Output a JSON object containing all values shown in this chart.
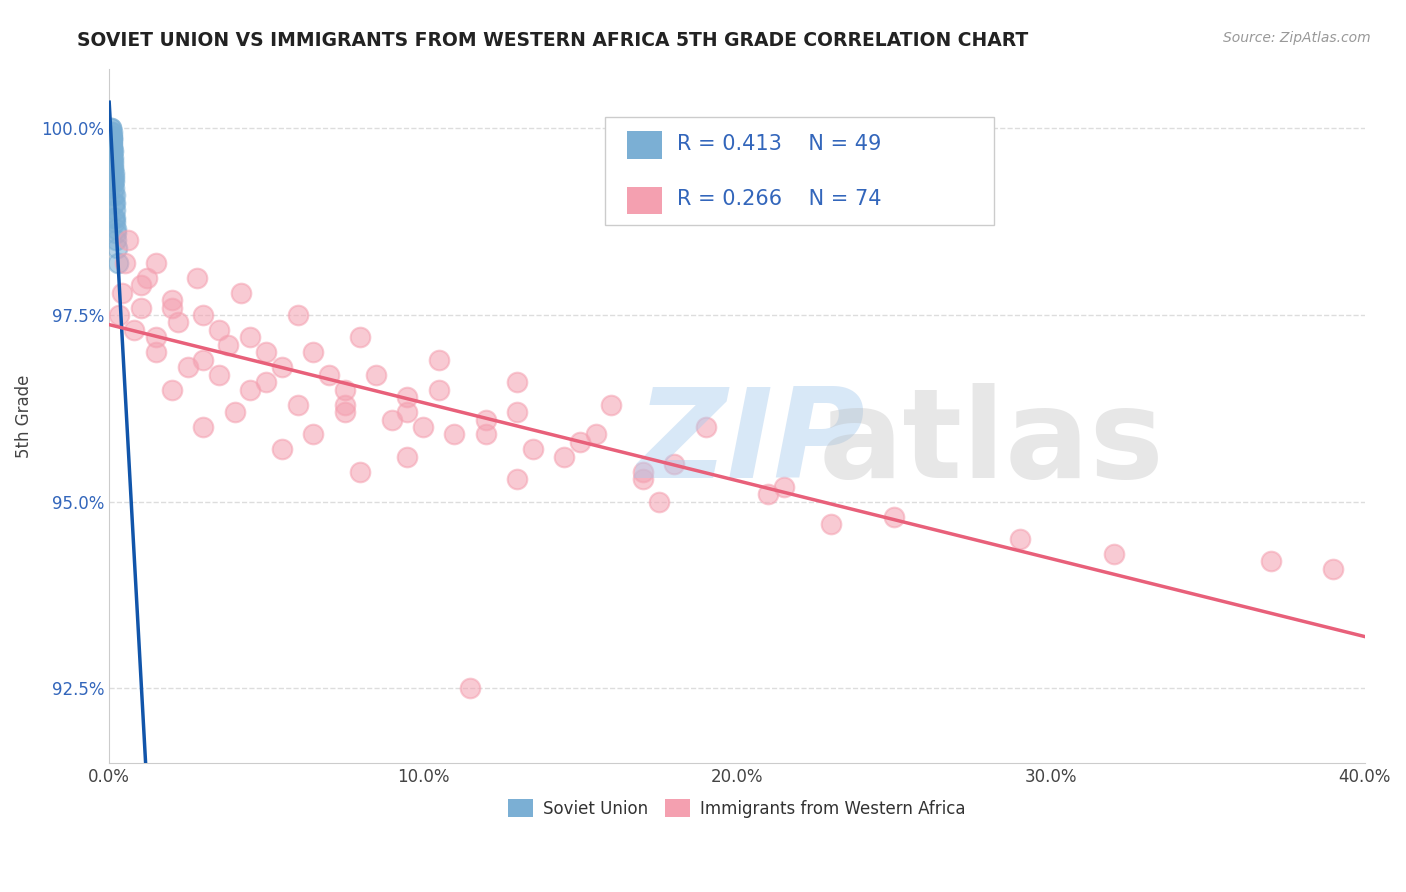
{
  "title": "SOVIET UNION VS IMMIGRANTS FROM WESTERN AFRICA 5TH GRADE CORRELATION CHART",
  "source_text": "Source: ZipAtlas.com",
  "ylabel": "5th Grade",
  "xlim": [
    0.0,
    40.0
  ],
  "ylim": [
    91.5,
    100.8
  ],
  "xticks": [
    0.0,
    10.0,
    20.0,
    30.0,
    40.0
  ],
  "xtick_labels": [
    "0.0%",
    "10.0%",
    "20.0%",
    "30.0%",
    "40.0%"
  ],
  "yticks": [
    92.5,
    95.0,
    97.5,
    100.0
  ],
  "ytick_labels": [
    "92.5%",
    "95.0%",
    "97.5%",
    "100.0%"
  ],
  "legend_R1": "R = 0.413",
  "legend_N1": "N = 49",
  "legend_R2": "R = 0.266",
  "legend_N2": "N = 74",
  "blue_color": "#7BAFD4",
  "pink_color": "#F4A0B0",
  "blue_line_color": "#1155AA",
  "pink_line_color": "#E8607A",
  "watermark_zip_color": "#AACCEE",
  "watermark_atlas_color": "#BBBBBB",
  "blue_x": [
    0.05,
    0.05,
    0.06,
    0.07,
    0.08,
    0.08,
    0.09,
    0.1,
    0.1,
    0.11,
    0.12,
    0.13,
    0.14,
    0.15,
    0.16,
    0.18,
    0.2,
    0.22,
    0.25,
    0.28,
    0.05,
    0.06,
    0.07,
    0.09,
    0.1,
    0.12,
    0.15,
    0.18,
    0.2,
    0.23,
    0.05,
    0.06,
    0.07,
    0.08,
    0.09,
    0.11,
    0.13,
    0.16,
    0.19,
    0.22,
    0.05,
    0.06,
    0.07,
    0.08,
    0.09,
    0.1,
    0.11,
    0.13,
    0.16
  ],
  "blue_y": [
    99.8,
    99.9,
    100.0,
    100.0,
    99.95,
    99.85,
    99.9,
    99.85,
    99.75,
    99.7,
    99.6,
    99.5,
    99.4,
    99.3,
    99.2,
    99.0,
    98.8,
    98.6,
    98.4,
    98.2,
    99.85,
    99.9,
    99.95,
    99.8,
    99.7,
    99.55,
    99.35,
    99.1,
    98.9,
    98.65,
    99.7,
    99.8,
    99.85,
    99.75,
    99.65,
    99.45,
    99.25,
    99.0,
    98.75,
    98.5,
    99.6,
    99.75,
    99.8,
    99.7,
    99.6,
    99.45,
    99.3,
    99.1,
    98.8
  ],
  "pink_x": [
    0.3,
    0.8,
    1.5,
    2.5,
    3.5,
    4.5,
    6.0,
    7.5,
    9.0,
    11.0,
    0.5,
    1.2,
    2.0,
    3.0,
    4.5,
    6.5,
    8.5,
    10.5,
    13.0,
    15.5,
    0.4,
    1.0,
    2.2,
    3.8,
    5.5,
    7.5,
    9.5,
    12.0,
    14.5,
    17.0,
    0.6,
    1.5,
    2.8,
    4.2,
    6.0,
    8.0,
    10.5,
    13.0,
    16.0,
    19.0,
    1.0,
    2.0,
    3.5,
    5.0,
    7.0,
    9.5,
    12.0,
    15.0,
    18.0,
    21.5,
    1.5,
    3.0,
    5.0,
    7.5,
    10.0,
    13.5,
    17.0,
    21.0,
    25.0,
    29.0,
    2.0,
    4.0,
    6.5,
    9.5,
    13.0,
    17.5,
    23.0,
    32.0,
    37.0,
    39.0,
    3.0,
    5.5,
    8.0,
    11.5
  ],
  "pink_y": [
    97.5,
    97.3,
    97.0,
    96.8,
    96.7,
    96.5,
    96.3,
    96.2,
    96.1,
    95.9,
    98.2,
    98.0,
    97.7,
    97.5,
    97.2,
    97.0,
    96.7,
    96.5,
    96.2,
    95.9,
    97.8,
    97.6,
    97.4,
    97.1,
    96.8,
    96.5,
    96.2,
    95.9,
    95.6,
    95.3,
    98.5,
    98.2,
    98.0,
    97.8,
    97.5,
    97.2,
    96.9,
    96.6,
    96.3,
    96.0,
    97.9,
    97.6,
    97.3,
    97.0,
    96.7,
    96.4,
    96.1,
    95.8,
    95.5,
    95.2,
    97.2,
    96.9,
    96.6,
    96.3,
    96.0,
    95.7,
    95.4,
    95.1,
    94.8,
    94.5,
    96.5,
    96.2,
    95.9,
    95.6,
    95.3,
    95.0,
    94.7,
    94.3,
    94.2,
    94.1,
    96.0,
    95.7,
    95.4,
    92.5
  ]
}
